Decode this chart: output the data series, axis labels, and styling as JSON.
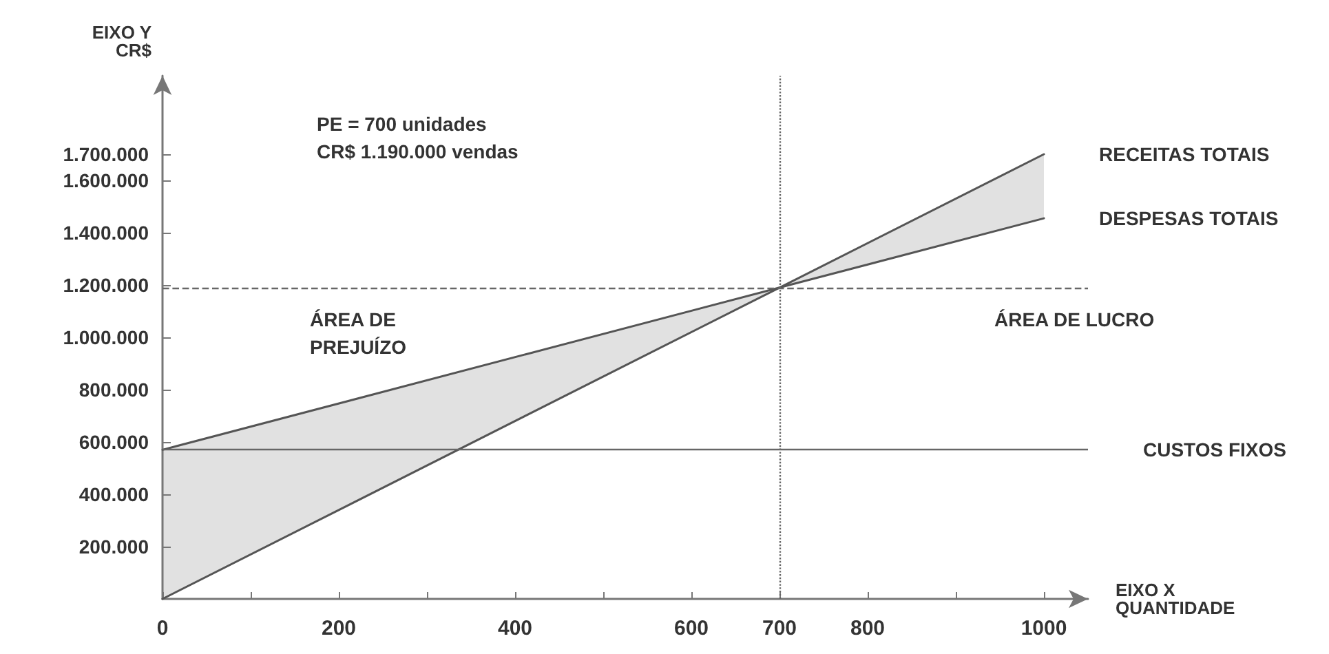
{
  "chart_data": {
    "type": "line",
    "xlabel": "EIXO X\nQUANTIDADE",
    "ylabel": "EIXO Y\nCR$",
    "x": [
      0,
      700,
      1000
    ],
    "series": [
      {
        "name": "RECEITAS TOTAIS",
        "color": "#555555",
        "values": [
          0,
          1190000,
          1700000
        ]
      },
      {
        "name": "DESPESAS TOTAIS",
        "color": "#555555",
        "values": [
          570000,
          1190000,
          1455000
        ]
      }
    ],
    "xlim": [
      0,
      1050
    ],
    "ylim": [
      0,
      2000000
    ],
    "xticks": [
      0,
      {
        "value": 100,
        "label": null
      },
      200,
      {
        "value": 300,
        "label": null
      },
      400,
      {
        "value": 500,
        "label": null
      },
      600,
      700,
      800,
      {
        "value": 900,
        "label": null
      },
      1000
    ],
    "yticks": [
      {
        "value": 200000,
        "label": "200.000"
      },
      {
        "value": 400000,
        "label": "400.000"
      },
      {
        "value": 600000,
        "label": "600.000"
      },
      {
        "value": 800000,
        "label": "800.000"
      },
      {
        "value": 1000000,
        "label": "1.000.000"
      },
      {
        "value": 1200000,
        "label": "1.200.000"
      },
      {
        "value": 1400000,
        "label": "1.400.000"
      },
      {
        "value": 1600000,
        "label": "1.600.000"
      },
      {
        "value": 1700000,
        "label": "1.700.000"
      }
    ],
    "ref_lines": [
      {
        "axis": "y",
        "value": 570000,
        "label": "CUSTOS FIXOS",
        "line_style": "solid"
      },
      {
        "axis": "x",
        "value": 700,
        "line_style": "dotted"
      },
      {
        "axis": "y",
        "value": 1190000,
        "line_style": "dashed"
      }
    ],
    "annotations": [
      "PE = 700 unidades\nCR$ 1.190.000 vendas",
      "ÁREA DE\nPREJUÍZO",
      "ÁREA DE LUCRO"
    ],
    "grid": false,
    "legend": false,
    "marker": "none",
    "line_style": "solid"
  }
}
